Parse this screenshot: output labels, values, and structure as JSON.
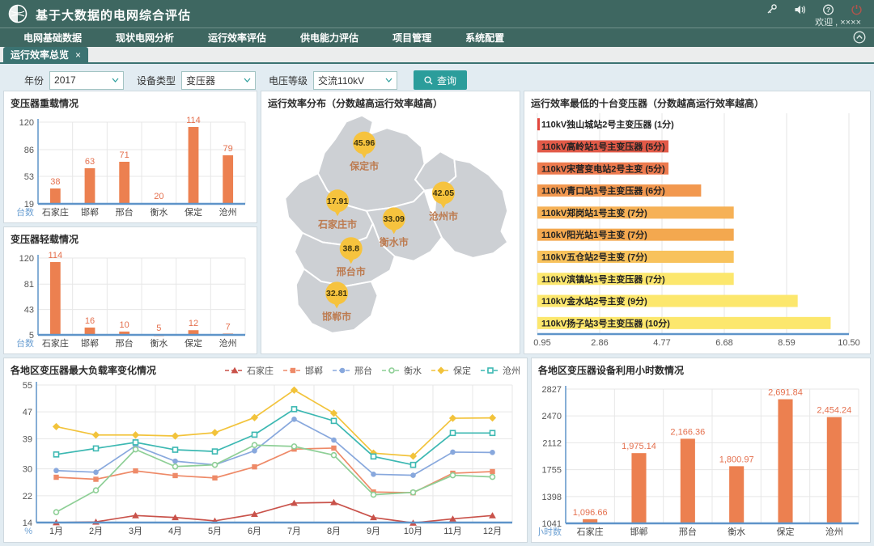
{
  "header": {
    "title": "基于大数据的电网综合评估",
    "welcome": "欢迎 , ××××"
  },
  "nav": {
    "items": [
      "电网基础数据",
      "现状电网分析",
      "运行效率评估",
      "供电能力评估",
      "项目管理",
      "系统配置"
    ]
  },
  "tabs": {
    "active": "运行效率总览",
    "close": "×"
  },
  "filters": {
    "year_label": "年份",
    "year_value": "2017",
    "device_label": "设备类型",
    "device_value": "变压器",
    "voltage_label": "电压等级",
    "voltage_value": "交流110kV",
    "search_label": "查询"
  },
  "colors": {
    "header_bg": "#3e6761",
    "accent_teal": "#2b9d9b",
    "bar": "#ec8050",
    "value_label": "#e4704e",
    "axis_blue": "#5e94c9",
    "axis_name_blue": "#6b9fd2",
    "map_region": "#cdd0d4",
    "pin": "#f6c33e",
    "city_label": "#bd7b50"
  },
  "chart_data": [
    {
      "id": "heavy-load",
      "type": "bar",
      "title": "变压器重载情况",
      "ylabel": "台数",
      "categories": [
        "石家庄",
        "邯郸",
        "邢台",
        "衡水",
        "保定",
        "沧州"
      ],
      "values": [
        38,
        63,
        71,
        20,
        114,
        79
      ],
      "yticks": [
        19,
        53,
        86,
        120
      ],
      "ylim": [
        19,
        120
      ]
    },
    {
      "id": "light-load",
      "type": "bar",
      "title": "变压器轻载情况",
      "ylabel": "台数",
      "categories": [
        "石家庄",
        "邯郸",
        "邢台",
        "衡水",
        "保定",
        "沧州"
      ],
      "values": [
        114,
        16,
        10,
        5,
        12,
        7
      ],
      "yticks": [
        5,
        43,
        81,
        120
      ],
      "ylim": [
        5,
        120
      ]
    },
    {
      "id": "efficiency-map",
      "type": "map",
      "title": "运行效率分布（分数越高运行效率越高）",
      "points": [
        {
          "city": "保定市",
          "value": "45.96",
          "x": 0.393,
          "y": 0.125
        },
        {
          "city": "沧州市",
          "value": "42.05",
          "x": 0.716,
          "y": 0.34
        },
        {
          "city": "石家庄市",
          "value": "17.91",
          "x": 0.284,
          "y": 0.374
        },
        {
          "city": "衡水市",
          "value": "33.09",
          "x": 0.514,
          "y": 0.451
        },
        {
          "city": "邢台市",
          "value": "38.8",
          "x": 0.339,
          "y": 0.579
        },
        {
          "city": "邯郸市",
          "value": "32.81",
          "x": 0.281,
          "y": 0.771
        }
      ]
    },
    {
      "id": "worst-ten",
      "type": "bar-horizontal",
      "title": "运行效率最低的十台变压器（分数越高运行效率越高）",
      "xlim": [
        0.95,
        10.5
      ],
      "xticks": [
        "0.95",
        "2.86",
        "4.77",
        "6.68",
        "8.59",
        "10.50"
      ],
      "items": [
        {
          "label": "110kV独山城站2号主变压器 (1分)",
          "value": 0.98,
          "color": "#e2463d"
        },
        {
          "label": "110kV高岭站1号主变压器 (5分)",
          "value": 4.97,
          "color": "#e25a48"
        },
        {
          "label": "110kV宋营变电站2号主变 (5分)",
          "value": 4.97,
          "color": "#ed7a4e"
        },
        {
          "label": "110kV青口站1号主变压器 (6分)",
          "value": 5.97,
          "color": "#f2984f"
        },
        {
          "label": "110kV郑岗站1号主变 (7分)",
          "value": 6.97,
          "color": "#f6b156"
        },
        {
          "label": "110kV阳光站1号主变 (7分)",
          "value": 6.97,
          "color": "#f3a84f"
        },
        {
          "label": "110kV五仓站2号主变 (7分)",
          "value": 6.97,
          "color": "#f8c25c"
        },
        {
          "label": "110kV滨镇站1号主变压器 (7分)",
          "value": 6.97,
          "color": "#fce76d"
        },
        {
          "label": "110kV金水站2号主变 (9分)",
          "value": 8.93,
          "color": "#fce76d"
        },
        {
          "label": "110kV扬子站3号主变压器 (10分)",
          "value": 9.94,
          "color": "#fce76d"
        }
      ]
    },
    {
      "id": "max-load-rate",
      "type": "line",
      "title": "各地区变压器最大负载率变化情况",
      "ylabel": "%",
      "x": [
        "1月",
        "2月",
        "3月",
        "4月",
        "5月",
        "6月",
        "7月",
        "8月",
        "9月",
        "10月",
        "11月",
        "12月"
      ],
      "yticks": [
        14,
        22,
        30,
        39,
        47,
        55
      ],
      "ylim": [
        14,
        55
      ],
      "series": [
        {
          "name": "石家庄",
          "color": "#c9524a",
          "marker": "triangle",
          "values": [
            14.0,
            14.2,
            16.1,
            15.5,
            14.5,
            16.5,
            19.8,
            20.0,
            15.5,
            13.9,
            15.1,
            16.1
          ]
        },
        {
          "name": "邯郸",
          "color": "#ee8a68",
          "marker": "square",
          "values": [
            27.5,
            26.9,
            29.4,
            28.0,
            27.3,
            30.6,
            35.9,
            36.2,
            23.1,
            22.9,
            28.7,
            29.2
          ]
        },
        {
          "name": "邢台",
          "color": "#88a8dd",
          "marker": "circle",
          "values": [
            29.5,
            29.0,
            36.9,
            32.3,
            31.2,
            35.4,
            44.8,
            38.6,
            28.4,
            28.1,
            35.0,
            34.9
          ]
        },
        {
          "name": "衡水",
          "color": "#8ecf96",
          "marker": "circle-open",
          "values": [
            17.1,
            23.6,
            35.8,
            30.7,
            31.2,
            37.1,
            36.7,
            34.1,
            22.3,
            23.0,
            28.1,
            27.6
          ]
        },
        {
          "name": "保定",
          "color": "#f2c33b",
          "marker": "diamond",
          "values": [
            42.6,
            40.1,
            40.1,
            39.8,
            40.8,
            45.3,
            53.5,
            46.6,
            34.7,
            33.8,
            45.1,
            45.2
          ]
        },
        {
          "name": "沧州",
          "color": "#3cb8b2",
          "marker": "square-open",
          "values": [
            34.3,
            36.1,
            37.9,
            35.7,
            35.2,
            40.2,
            47.8,
            44.3,
            33.7,
            31.2,
            40.7,
            40.7
          ]
        }
      ]
    },
    {
      "id": "usage-hours",
      "type": "bar",
      "title": "各地区变压器设备利用小时数情况",
      "ylabel": "利用小时数",
      "categories": [
        "石家庄",
        "邯郸",
        "邢台",
        "衡水",
        "保定",
        "沧州"
      ],
      "values": [
        1096.66,
        1975.14,
        2166.36,
        1800.97,
        2691.84,
        2454.24
      ],
      "labels": [
        "1,096.66",
        "1,975.14",
        "2,166.36",
        "1,800.97",
        "2,691.84",
        "2,454.24"
      ],
      "yticks": [
        1041,
        1398,
        1755,
        2112,
        2470,
        2827
      ],
      "ylim": [
        1041,
        2827
      ]
    }
  ]
}
